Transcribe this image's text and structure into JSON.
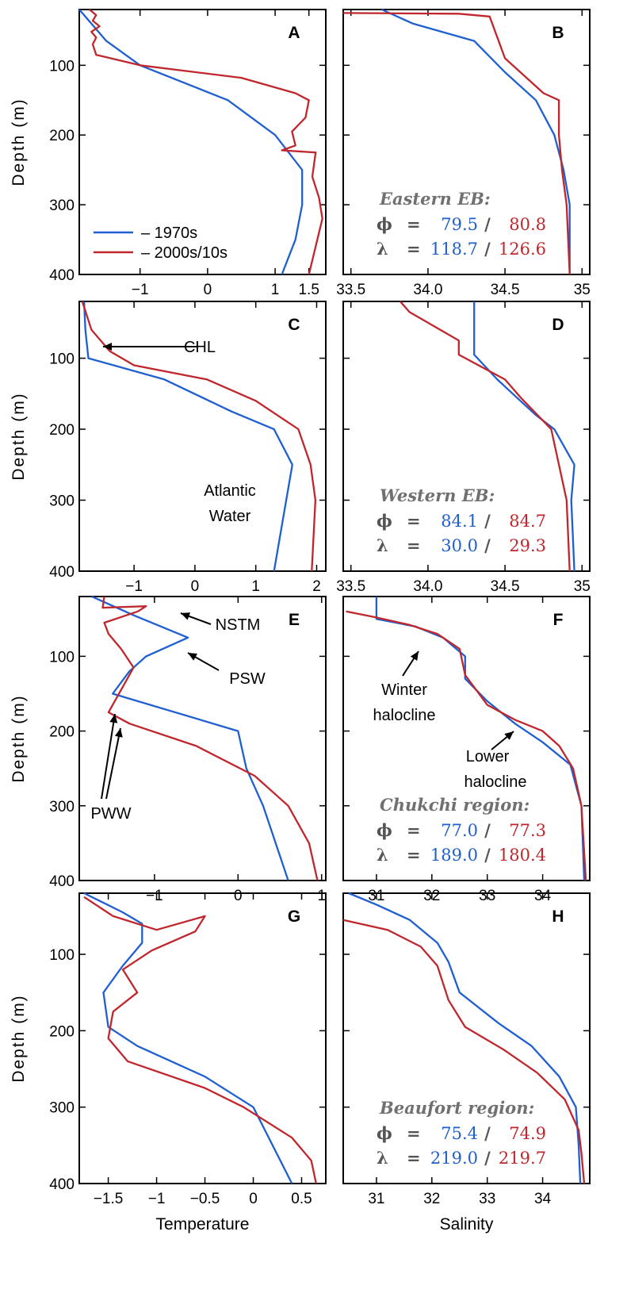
{
  "colors": {
    "series_1970s": "#1f5fcf",
    "series_2000s": "#c0272d",
    "axis": "#000000",
    "region_text": "#707070"
  },
  "shared": {
    "ylabel": "Depth (m)",
    "depth_ticks": [
      "100",
      "200",
      "300",
      "400"
    ],
    "xlabel_temperature": "Temperature",
    "xlabel_salinity": "Salinity",
    "stat_phi": "ϕ",
    "stat_lambda": "λ",
    "stat_eq": "=",
    "stat_sep": "/"
  },
  "legend": {
    "series_1970s": "– 1970s",
    "series_2000s": "– 2000s/10s"
  },
  "chart_data": [
    {
      "panel": "A",
      "type": "line",
      "ylabel": "Depth (m)",
      "xlabel": "",
      "xlim": [
        -1.9,
        1.75
      ],
      "ylim": [
        400,
        20
      ],
      "xticks": [
        -1,
        0,
        1,
        1.5
      ],
      "xticklabels": [
        "−1",
        "0",
        "1",
        "1.5"
      ],
      "series": [
        {
          "name": "1970s",
          "points": [
            [
              -1.9,
              20
            ],
            [
              -1.5,
              65
            ],
            [
              -1.0,
              100
            ],
            [
              0.3,
              150
            ],
            [
              1.0,
              200
            ],
            [
              1.4,
              250
            ],
            [
              1.4,
              300
            ],
            [
              1.3,
              350
            ],
            [
              1.1,
              400
            ]
          ]
        },
        {
          "name": "2000s/10s",
          "points": [
            [
              -1.75,
              20
            ],
            [
              -1.65,
              28
            ],
            [
              -1.7,
              36
            ],
            [
              -1.6,
              44
            ],
            [
              -1.72,
              52
            ],
            [
              -1.65,
              60
            ],
            [
              -1.7,
              70
            ],
            [
              -1.65,
              85
            ],
            [
              -1.0,
              100
            ],
            [
              0.5,
              118
            ],
            [
              1.3,
              140
            ],
            [
              1.5,
              150
            ],
            [
              1.45,
              175
            ],
            [
              1.25,
              195
            ],
            [
              1.3,
              215
            ],
            [
              1.1,
              222
            ],
            [
              1.6,
              225
            ],
            [
              1.55,
              260
            ],
            [
              1.65,
              290
            ],
            [
              1.7,
              320
            ],
            [
              1.6,
              360
            ],
            [
              1.5,
              400
            ]
          ]
        }
      ],
      "annotations": [],
      "region": null
    },
    {
      "panel": "B",
      "type": "line",
      "ylabel": "",
      "xlabel": "",
      "xlim": [
        33.45,
        35.05
      ],
      "ylim": [
        400,
        20
      ],
      "xticks": [
        33.5,
        34.0,
        34.5,
        35
      ],
      "xticklabels": [
        "33.5",
        "34.0",
        "34.5",
        "35"
      ],
      "series": [
        {
          "name": "1970s",
          "points": [
            [
              33.7,
              20
            ],
            [
              33.9,
              40
            ],
            [
              34.3,
              65
            ],
            [
              34.5,
              110
            ],
            [
              34.7,
              150
            ],
            [
              34.82,
              200
            ],
            [
              34.88,
              250
            ],
            [
              34.92,
              300
            ],
            [
              34.92,
              400
            ]
          ]
        },
        {
          "name": "2000s/10s",
          "points": [
            [
              33.45,
              25
            ],
            [
              34.2,
              26
            ],
            [
              34.4,
              30
            ],
            [
              34.45,
              60
            ],
            [
              34.5,
              90
            ],
            [
              34.75,
              140
            ],
            [
              34.85,
              150
            ],
            [
              34.85,
              200
            ],
            [
              34.87,
              250
            ],
            [
              34.9,
              300
            ],
            [
              34.92,
              400
            ]
          ]
        }
      ],
      "annotations": [],
      "region": {
        "name": "Eastern EB:",
        "phi": [
          "79.5",
          "80.8"
        ],
        "lambda": [
          "118.7",
          "126.6"
        ]
      }
    },
    {
      "panel": "C",
      "type": "line",
      "ylabel": "Depth (m)",
      "xlabel": "",
      "xlim": [
        -1.9,
        2.15
      ],
      "ylim": [
        400,
        20
      ],
      "xticks": [
        -1,
        0,
        1,
        2
      ],
      "xticklabels": [
        "−1",
        "0",
        "1",
        "2"
      ],
      "series": [
        {
          "name": "1970s",
          "points": [
            [
              -1.82,
              20
            ],
            [
              -1.8,
              60
            ],
            [
              -1.75,
              100
            ],
            [
              -0.5,
              130
            ],
            [
              0.6,
              175
            ],
            [
              1.3,
              200
            ],
            [
              1.6,
              250
            ],
            [
              1.5,
              300
            ],
            [
              1.3,
              400
            ]
          ]
        },
        {
          "name": "2000s/10s",
          "points": [
            [
              -1.85,
              20
            ],
            [
              -1.7,
              60
            ],
            [
              -1.4,
              90
            ],
            [
              -1.0,
              110
            ],
            [
              0.2,
              130
            ],
            [
              1.0,
              160
            ],
            [
              1.7,
              200
            ],
            [
              1.9,
              250
            ],
            [
              1.98,
              300
            ],
            [
              1.95,
              350
            ],
            [
              1.92,
              400
            ]
          ]
        }
      ],
      "annotations": [
        {
          "text": "CHL",
          "target": [
            -1.5,
            75
          ]
        },
        {
          "text": "Atlantic",
          "target": null
        },
        {
          "text": "Water",
          "target": null
        }
      ],
      "region": null
    },
    {
      "panel": "D",
      "type": "line",
      "ylabel": "",
      "xlabel": "",
      "xlim": [
        33.45,
        35.05
      ],
      "ylim": [
        400,
        20
      ],
      "xticks": [
        33.5,
        34.0,
        34.5,
        35
      ],
      "xticklabels": [
        "33.5",
        "34.0",
        "34.5",
        "35"
      ],
      "series": [
        {
          "name": "1970s",
          "points": [
            [
              34.3,
              20
            ],
            [
              34.3,
              95
            ],
            [
              34.45,
              130
            ],
            [
              34.6,
              160
            ],
            [
              34.7,
              180
            ],
            [
              34.82,
              200
            ],
            [
              34.95,
              250
            ],
            [
              34.93,
              300
            ],
            [
              34.95,
              400
            ]
          ]
        },
        {
          "name": "2000s/10s",
          "points": [
            [
              33.82,
              20
            ],
            [
              33.88,
              35
            ],
            [
              34.2,
              75
            ],
            [
              34.2,
              95
            ],
            [
              34.5,
              130
            ],
            [
              34.6,
              155
            ],
            [
              34.8,
              200
            ],
            [
              34.85,
              250
            ],
            [
              34.9,
              300
            ],
            [
              34.92,
              400
            ]
          ]
        }
      ],
      "annotations": [],
      "region": {
        "name": "Western EB:",
        "phi": [
          "84.1",
          "84.7"
        ],
        "lambda": [
          "30.0",
          "29.3"
        ]
      }
    },
    {
      "panel": "E",
      "type": "line",
      "ylabel": "Depth (m)",
      "xlabel": "",
      "xlim": [
        -1.9,
        1.05
      ],
      "ylim": [
        400,
        20
      ],
      "xticks": [
        -1,
        0,
        1
      ],
      "xticklabels": [
        "−1",
        "0",
        "1"
      ],
      "series": [
        {
          "name": "1970s",
          "points": [
            [
              -1.75,
              20
            ],
            [
              -1.25,
              45
            ],
            [
              -0.6,
              75
            ],
            [
              -1.1,
              100
            ],
            [
              -1.3,
              120
            ],
            [
              -1.5,
              150
            ],
            [
              0.0,
              200
            ],
            [
              0.1,
              250
            ],
            [
              0.3,
              300
            ],
            [
              0.6,
              400
            ]
          ]
        },
        {
          "name": "2000s/10s",
          "points": [
            [
              -1.6,
              20
            ],
            [
              -1.62,
              35
            ],
            [
              -1.1,
              33
            ],
            [
              -1.2,
              40
            ],
            [
              -1.6,
              55
            ],
            [
              -1.55,
              70
            ],
            [
              -1.4,
              90
            ],
            [
              -1.25,
              115
            ],
            [
              -1.35,
              135
            ],
            [
              -1.5,
              165
            ],
            [
              -1.55,
              175
            ],
            [
              -1.3,
              190
            ],
            [
              -0.5,
              220
            ],
            [
              0.2,
              260
            ],
            [
              0.6,
              300
            ],
            [
              0.85,
              350
            ],
            [
              0.95,
              400
            ]
          ]
        }
      ],
      "annotations": [
        {
          "text": "NSTM",
          "target": [
            -1.05,
            35
          ]
        },
        {
          "text": "PSW",
          "target": [
            -0.6,
            80
          ]
        },
        {
          "text": "PWW",
          "target": [
            -1.55,
            150
          ]
        }
      ],
      "region": null
    },
    {
      "panel": "F",
      "type": "line",
      "ylabel": "",
      "xlabel": "",
      "xlim": [
        30.4,
        34.85
      ],
      "ylim": [
        400,
        20
      ],
      "xticks": [
        31,
        32,
        33,
        34
      ],
      "xticklabels": [
        "31",
        "32",
        "33",
        "34"
      ],
      "series": [
        {
          "name": "1970s",
          "points": [
            [
              31.0,
              20
            ],
            [
              31.0,
              50
            ],
            [
              31.7,
              60
            ],
            [
              32.2,
              75
            ],
            [
              32.6,
              100
            ],
            [
              32.6,
              130
            ],
            [
              33.0,
              160
            ],
            [
              33.5,
              190
            ],
            [
              34.0,
              215
            ],
            [
              34.5,
              245
            ],
            [
              34.7,
              300
            ],
            [
              34.75,
              400
            ]
          ]
        },
        {
          "name": "2000s/10s",
          "points": [
            [
              30.45,
              40
            ],
            [
              31.0,
              48
            ],
            [
              31.6,
              58
            ],
            [
              32.1,
              70
            ],
            [
              32.5,
              90
            ],
            [
              32.6,
              125
            ],
            [
              33.0,
              165
            ],
            [
              33.5,
              185
            ],
            [
              34.0,
              200
            ],
            [
              34.3,
              220
            ],
            [
              34.55,
              250
            ],
            [
              34.7,
              300
            ],
            [
              34.78,
              400
            ]
          ]
        }
      ],
      "annotations": [
        {
          "text": "Winter",
          "target": null
        },
        {
          "text": "halocline",
          "target": [
            31.85,
            72
          ]
        },
        {
          "text": "Lower",
          "target": null
        },
        {
          "text": "halocline",
          "target": [
            33.55,
            188
          ]
        }
      ],
      "region": {
        "name": "Chukchi region:",
        "phi": [
          "77.0",
          "77.3"
        ],
        "lambda": [
          "189.0",
          "180.4"
        ]
      }
    },
    {
      "panel": "G",
      "type": "line",
      "ylabel": "Depth (m)",
      "xlabel": "Temperature",
      "xlim": [
        -1.8,
        0.75
      ],
      "ylim": [
        400,
        20
      ],
      "xticks": [
        -1.5,
        -1,
        -0.5,
        0,
        0.5
      ],
      "xticklabels": [
        "−1.5",
        "−1",
        "−0.5",
        "0",
        "0.5"
      ],
      "series": [
        {
          "name": "1970s",
          "points": [
            [
              -1.75,
              20
            ],
            [
              -1.35,
              45
            ],
            [
              -1.15,
              60
            ],
            [
              -1.15,
              85
            ],
            [
              -1.35,
              115
            ],
            [
              -1.55,
              150
            ],
            [
              -1.5,
              195
            ],
            [
              -1.2,
              220
            ],
            [
              -0.5,
              260
            ],
            [
              0.0,
              300
            ],
            [
              0.4,
              400
            ]
          ]
        },
        {
          "name": "2000s/10s",
          "points": [
            [
              -1.75,
              25
            ],
            [
              -1.45,
              50
            ],
            [
              -1.0,
              68
            ],
            [
              -0.5,
              50
            ],
            [
              -0.6,
              70
            ],
            [
              -1.05,
              95
            ],
            [
              -1.35,
              120
            ],
            [
              -1.2,
              150
            ],
            [
              -1.45,
              175
            ],
            [
              -1.5,
              210
            ],
            [
              -1.3,
              240
            ],
            [
              -0.5,
              275
            ],
            [
              -0.1,
              300
            ],
            [
              0.4,
              340
            ],
            [
              0.6,
              370
            ],
            [
              0.65,
              400
            ]
          ]
        }
      ],
      "annotations": [],
      "region": null
    },
    {
      "panel": "H",
      "type": "line",
      "ylabel": "",
      "xlabel": "Salinity",
      "xlim": [
        30.4,
        34.85
      ],
      "ylim": [
        400,
        20
      ],
      "xticks": [
        31,
        32,
        33,
        34
      ],
      "xticklabels": [
        "31",
        "32",
        "33",
        "34"
      ],
      "series": [
        {
          "name": "1970s",
          "points": [
            [
              30.5,
              20
            ],
            [
              31.0,
              35
            ],
            [
              31.6,
              55
            ],
            [
              32.1,
              85
            ],
            [
              32.3,
              110
            ],
            [
              32.5,
              150
            ],
            [
              33.2,
              190
            ],
            [
              33.8,
              220
            ],
            [
              34.3,
              260
            ],
            [
              34.6,
              300
            ],
            [
              34.65,
              350
            ],
            [
              34.68,
              400
            ]
          ]
        },
        {
          "name": "2000s/10s",
          "points": [
            [
              30.4,
              55
            ],
            [
              31.2,
              68
            ],
            [
              31.8,
              90
            ],
            [
              32.1,
              115
            ],
            [
              32.3,
              160
            ],
            [
              32.6,
              195
            ],
            [
              33.3,
              225
            ],
            [
              33.9,
              255
            ],
            [
              34.4,
              290
            ],
            [
              34.65,
              330
            ],
            [
              34.7,
              360
            ],
            [
              34.75,
              400
            ]
          ]
        }
      ],
      "annotations": [],
      "region": {
        "name": "Beaufort region:",
        "phi": [
          "75.4",
          "74.9"
        ],
        "lambda": [
          "219.0",
          "219.7"
        ]
      }
    }
  ]
}
